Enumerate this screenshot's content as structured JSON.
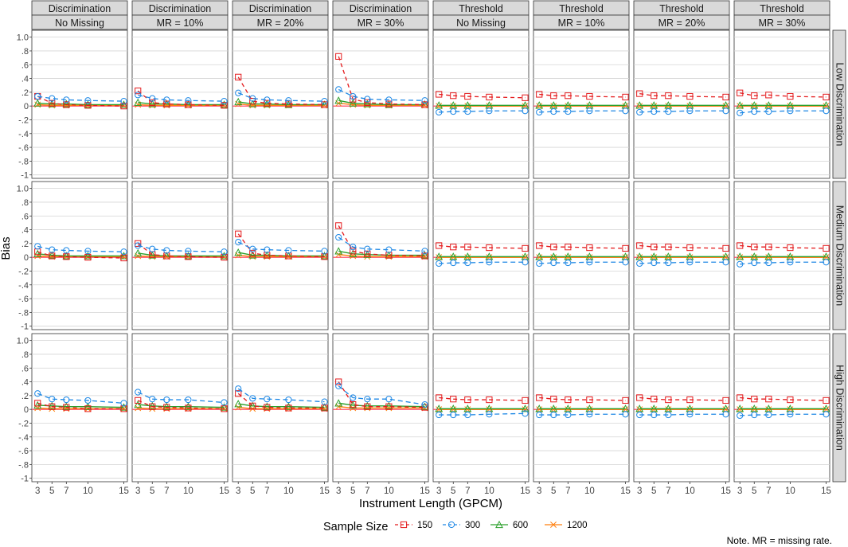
{
  "chart_data": {
    "type": "line",
    "ylabel": "Bias",
    "xlabel": "Instrument Length (GPCM)",
    "x": [
      3,
      5,
      7,
      10,
      15
    ],
    "x_ticks": [
      "3",
      "5",
      "7",
      "10",
      "15"
    ],
    "y_range": [
      -1.05,
      1.1
    ],
    "y_ticks": [
      1.0,
      0.8,
      0.6,
      0.4,
      0.2,
      0.0,
      -0.2,
      -0.4,
      -0.6,
      -0.8,
      -1.0
    ],
    "y_tick_labels": [
      "1.0",
      ".8",
      ".6",
      ".4",
      ".2",
      "0",
      "-.2",
      "-.4",
      "-.6",
      "-.8",
      "-1"
    ],
    "col_headers": [
      {
        "top": "Discrimination",
        "bottom": "No Missing"
      },
      {
        "top": "Discrimination",
        "bottom": "MR = 10%"
      },
      {
        "top": "Discrimination",
        "bottom": "MR = 20%"
      },
      {
        "top": "Discrimination",
        "bottom": "MR = 30%"
      },
      {
        "top": "Threshold",
        "bottom": "No Missing"
      },
      {
        "top": "Threshold",
        "bottom": "MR = 10%"
      },
      {
        "top": "Threshold",
        "bottom": "MR = 20%"
      },
      {
        "top": "Threshold",
        "bottom": "MR = 30%"
      }
    ],
    "row_headers": [
      "Low Discrimination",
      "Medium Discrimination",
      "High Discrimination"
    ],
    "reference_line": 0,
    "legend": {
      "title": "Sample Size",
      "position": "bottom",
      "entries": [
        {
          "label": "150",
          "color": "#e41a1c",
          "marker": "square",
          "dash": "5,4"
        },
        {
          "label": "300",
          "color": "#1e88e5",
          "marker": "circle",
          "dash": "6,4"
        },
        {
          "label": "600",
          "color": "#2ca02c",
          "marker": "triangle",
          "dash": ""
        },
        {
          "label": "1200",
          "color": "#ff7f0e",
          "marker": "x",
          "dash": ""
        }
      ]
    },
    "series_order": [
      "150",
      "300",
      "600",
      "1200"
    ],
    "panels": [
      [
        [
          [
            0.14,
            0.04,
            0.02,
            0.01,
            0.0
          ],
          [
            0.14,
            0.11,
            0.09,
            0.08,
            0.07
          ],
          [
            0.04,
            0.03,
            0.03,
            0.02,
            0.02
          ],
          [
            0.02,
            0.01,
            0.01,
            0.01,
            0.01
          ]
        ],
        [
          [
            0.22,
            0.05,
            0.03,
            0.02,
            0.01
          ],
          [
            0.16,
            0.11,
            0.09,
            0.08,
            0.07
          ],
          [
            0.05,
            0.03,
            0.03,
            0.02,
            0.02
          ],
          [
            0.02,
            0.01,
            0.01,
            0.01,
            0.01
          ]
        ],
        [
          [
            0.42,
            0.07,
            0.04,
            0.03,
            0.02
          ],
          [
            0.19,
            0.11,
            0.09,
            0.08,
            0.07
          ],
          [
            0.06,
            0.03,
            0.03,
            0.02,
            0.02
          ],
          [
            0.03,
            0.01,
            0.01,
            0.01,
            0.01
          ]
        ],
        [
          [
            0.72,
            0.1,
            0.05,
            0.03,
            0.02
          ],
          [
            0.24,
            0.14,
            0.1,
            0.09,
            0.08
          ],
          [
            0.08,
            0.04,
            0.03,
            0.02,
            0.02
          ],
          [
            0.04,
            0.02,
            0.01,
            0.01,
            0.01
          ]
        ],
        [
          [
            0.17,
            0.15,
            0.14,
            0.13,
            0.12
          ],
          [
            -0.09,
            -0.08,
            -0.08,
            -0.07,
            -0.07
          ],
          [
            0.01,
            0.01,
            0.01,
            0.01,
            0.01
          ],
          [
            0.0,
            0.0,
            0.0,
            0.0,
            0.0
          ]
        ],
        [
          [
            0.17,
            0.15,
            0.15,
            0.14,
            0.13
          ],
          [
            -0.09,
            -0.08,
            -0.08,
            -0.07,
            -0.07
          ],
          [
            0.01,
            0.01,
            0.01,
            0.01,
            0.01
          ],
          [
            0.0,
            0.0,
            0.0,
            0.0,
            0.0
          ]
        ],
        [
          [
            0.18,
            0.15,
            0.15,
            0.14,
            0.13
          ],
          [
            -0.09,
            -0.08,
            -0.08,
            -0.07,
            -0.07
          ],
          [
            0.01,
            0.01,
            0.01,
            0.01,
            0.01
          ],
          [
            0.0,
            0.0,
            0.0,
            0.0,
            0.0
          ]
        ],
        [
          [
            0.19,
            0.15,
            0.16,
            0.14,
            0.13
          ],
          [
            -0.1,
            -0.08,
            -0.08,
            -0.07,
            -0.07
          ],
          [
            0.01,
            0.01,
            0.01,
            0.01,
            0.01
          ],
          [
            0.0,
            0.0,
            0.0,
            0.0,
            0.0
          ]
        ]
      ],
      [
        [
          [
            0.08,
            0.02,
            0.01,
            0.0,
            -0.01
          ],
          [
            0.16,
            0.11,
            0.1,
            0.09,
            0.08
          ],
          [
            0.05,
            0.03,
            0.02,
            0.02,
            0.02
          ],
          [
            0.02,
            0.01,
            0.01,
            0.01,
            0.01
          ]
        ],
        [
          [
            0.2,
            0.04,
            0.02,
            0.01,
            0.0
          ],
          [
            0.17,
            0.12,
            0.1,
            0.09,
            0.08
          ],
          [
            0.06,
            0.03,
            0.02,
            0.02,
            0.02
          ],
          [
            0.02,
            0.01,
            0.01,
            0.01,
            0.01
          ]
        ],
        [
          [
            0.34,
            0.06,
            0.03,
            0.02,
            0.01
          ],
          [
            0.22,
            0.12,
            0.11,
            0.1,
            0.09
          ],
          [
            0.07,
            0.03,
            0.03,
            0.02,
            0.02
          ],
          [
            0.03,
            0.01,
            0.01,
            0.01,
            0.01
          ]
        ],
        [
          [
            0.46,
            0.09,
            0.05,
            0.03,
            0.02
          ],
          [
            0.29,
            0.15,
            0.12,
            0.11,
            0.09
          ],
          [
            0.09,
            0.05,
            0.04,
            0.03,
            0.03
          ],
          [
            0.04,
            0.02,
            0.01,
            0.01,
            0.01
          ]
        ],
        [
          [
            0.17,
            0.15,
            0.15,
            0.14,
            0.13
          ],
          [
            -0.09,
            -0.08,
            -0.08,
            -0.07,
            -0.07
          ],
          [
            0.01,
            0.01,
            0.01,
            0.01,
            0.01
          ],
          [
            0.0,
            0.0,
            0.0,
            0.0,
            0.0
          ]
        ],
        [
          [
            0.17,
            0.15,
            0.15,
            0.14,
            0.13
          ],
          [
            -0.09,
            -0.08,
            -0.08,
            -0.07,
            -0.07
          ],
          [
            0.01,
            0.01,
            0.01,
            0.01,
            0.01
          ],
          [
            0.0,
            0.0,
            0.0,
            0.0,
            0.0
          ]
        ],
        [
          [
            0.17,
            0.15,
            0.15,
            0.14,
            0.13
          ],
          [
            -0.09,
            -0.08,
            -0.08,
            -0.07,
            -0.07
          ],
          [
            0.01,
            0.01,
            0.01,
            0.01,
            0.01
          ],
          [
            0.0,
            0.0,
            0.0,
            0.0,
            0.0
          ]
        ],
        [
          [
            0.17,
            0.15,
            0.15,
            0.14,
            0.13
          ],
          [
            -0.1,
            -0.08,
            -0.08,
            -0.07,
            -0.07
          ],
          [
            0.01,
            0.01,
            0.01,
            0.01,
            0.01
          ],
          [
            0.0,
            0.0,
            0.0,
            0.0,
            0.0
          ]
        ]
      ],
      [
        [
          [
            0.09,
            0.04,
            0.03,
            0.01,
            0.01
          ],
          [
            0.23,
            0.15,
            0.14,
            0.13,
            0.09
          ],
          [
            0.06,
            0.05,
            0.04,
            0.04,
            0.03
          ],
          [
            0.02,
            0.01,
            0.01,
            0.01,
            0.01
          ]
        ],
        [
          [
            0.13,
            0.04,
            0.03,
            0.02,
            0.01
          ],
          [
            0.25,
            0.15,
            0.14,
            0.14,
            0.1
          ],
          [
            0.07,
            0.05,
            0.04,
            0.04,
            0.03
          ],
          [
            0.02,
            0.01,
            0.01,
            0.01,
            0.01
          ]
        ],
        [
          [
            0.23,
            0.05,
            0.03,
            0.02,
            0.02
          ],
          [
            0.3,
            0.16,
            0.15,
            0.14,
            0.11
          ],
          [
            0.08,
            0.05,
            0.04,
            0.04,
            0.03
          ],
          [
            0.03,
            0.01,
            0.01,
            0.01,
            0.01
          ]
        ],
        [
          [
            0.4,
            0.07,
            0.04,
            0.04,
            0.03
          ],
          [
            0.34,
            0.17,
            0.15,
            0.15,
            0.07
          ],
          [
            0.09,
            0.06,
            0.05,
            0.05,
            0.04
          ],
          [
            0.04,
            0.02,
            0.02,
            0.02,
            0.02
          ]
        ],
        [
          [
            0.17,
            0.15,
            0.14,
            0.14,
            0.13
          ],
          [
            -0.08,
            -0.08,
            -0.08,
            -0.07,
            -0.06
          ],
          [
            0.01,
            0.01,
            0.01,
            0.01,
            0.01
          ],
          [
            0.0,
            0.0,
            0.0,
            0.0,
            0.0
          ]
        ],
        [
          [
            0.17,
            0.15,
            0.14,
            0.14,
            0.13
          ],
          [
            -0.08,
            -0.08,
            -0.08,
            -0.07,
            -0.07
          ],
          [
            0.01,
            0.01,
            0.01,
            0.01,
            0.01
          ],
          [
            0.0,
            0.0,
            0.0,
            0.0,
            0.0
          ]
        ],
        [
          [
            0.17,
            0.15,
            0.14,
            0.14,
            0.13
          ],
          [
            -0.08,
            -0.08,
            -0.08,
            -0.07,
            -0.07
          ],
          [
            0.01,
            0.01,
            0.01,
            0.01,
            0.01
          ],
          [
            0.0,
            0.0,
            0.0,
            0.0,
            0.0
          ]
        ],
        [
          [
            0.17,
            0.15,
            0.15,
            0.14,
            0.13
          ],
          [
            -0.09,
            -0.08,
            -0.08,
            -0.07,
            -0.07
          ],
          [
            0.01,
            0.01,
            0.01,
            0.01,
            0.01
          ],
          [
            0.0,
            0.0,
            0.0,
            0.0,
            0.0
          ]
        ]
      ]
    ],
    "note": "Note. MR = missing rate."
  }
}
